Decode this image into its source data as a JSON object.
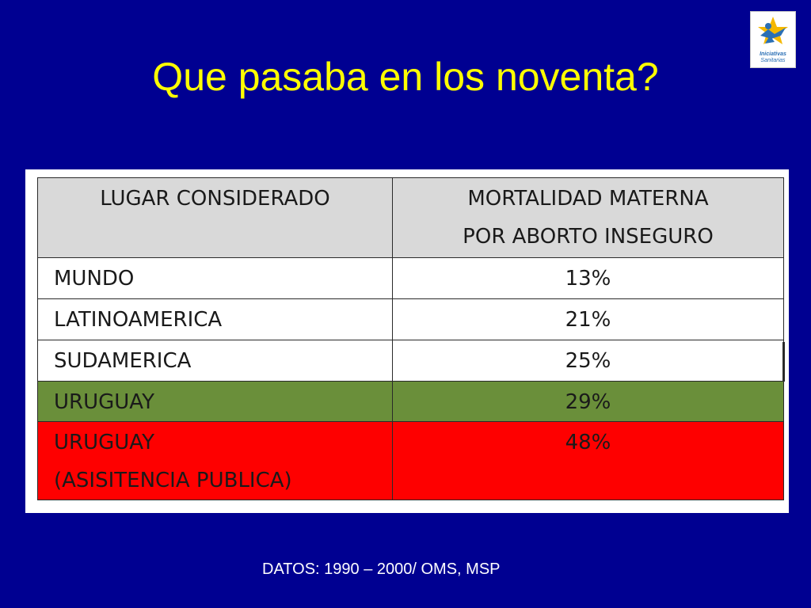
{
  "slide": {
    "title": "Que pasaba en los noventa?",
    "footer": "DATOS: 1990 – 2000/ OMS, MSP",
    "background_color": "#000091",
    "title_color": "#ffff00"
  },
  "logo": {
    "line1": "Iniciativas",
    "line2": "Sanitarias",
    "icon": "star-person-logo-icon"
  },
  "table": {
    "headers": {
      "place": "LUGAR CONSIDERADO",
      "value": "MORTALIDAD MATERNA\nPOR ABORTO INSEGURO"
    },
    "rows": [
      {
        "place": "MUNDO",
        "value": "13%"
      },
      {
        "place": "LATINOAMERICA",
        "value": "21%"
      },
      {
        "place": "SUDAMERICA",
        "value": "25%"
      },
      {
        "place": "URUGUAY",
        "value": "29%",
        "highlight": "#6a8f3a"
      },
      {
        "place": "URUGUAY\n(ASISITENCIA PUBLICA)",
        "value": "48%",
        "highlight": "#fe0000"
      }
    ]
  }
}
